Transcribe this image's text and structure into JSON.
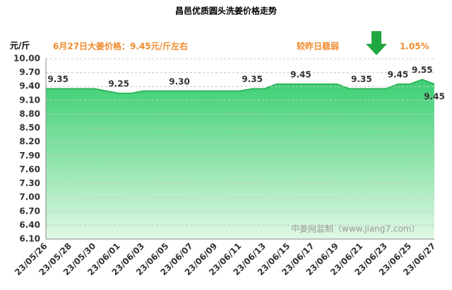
{
  "chart_data": {
    "type": "area",
    "title": "昌邑优质圆头洗姜价格走势",
    "y_label": "元/斤",
    "annotations": [
      "6月27日大姜价格：9.45元/斤左右",
      "较昨日稳弱",
      "1.05%",
      "中姜网监制（www.jiang7.com）"
    ],
    "categories": [
      "23/05/26",
      null,
      "23/05/28",
      null,
      "23/05/30",
      null,
      "23/06/01",
      null,
      "23/06/03",
      null,
      "23/06/05",
      null,
      "23/06/07",
      null,
      "23/06/09",
      null,
      "23/06/11",
      null,
      "23/06/13",
      null,
      "23/06/15",
      null,
      "23/06/17",
      null,
      "23/06/19",
      null,
      "23/06/21",
      null,
      "23/06/23",
      null,
      "23/06/25",
      null,
      "23/06/27"
    ],
    "values": [
      9.35,
      9.35,
      9.35,
      9.35,
      9.35,
      9.3,
      9.25,
      9.25,
      9.3,
      9.3,
      9.3,
      9.3,
      9.3,
      9.3,
      9.3,
      9.3,
      9.3,
      9.35,
      9.35,
      9.45,
      9.45,
      9.45,
      9.45,
      9.45,
      9.45,
      9.35,
      9.35,
      9.35,
      9.35,
      9.45,
      9.45,
      9.55,
      9.45
    ],
    "value_labels": [
      null,
      "9.35",
      null,
      null,
      null,
      null,
      "9.25",
      null,
      null,
      null,
      null,
      "9.30",
      null,
      null,
      null,
      null,
      null,
      "9.35",
      null,
      null,
      null,
      "9.45",
      null,
      null,
      null,
      null,
      "9.35",
      null,
      null,
      "9.45",
      null,
      "9.55",
      "9.45"
    ],
    "color": "#2fb85c",
    "ylim": [
      6.1,
      10.0
    ],
    "yticks": [
      {
        "value": 6.1,
        "label": "6.10"
      },
      {
        "value": 6.4,
        "label": "6.40"
      },
      {
        "value": 6.7,
        "label": "6.70"
      },
      {
        "value": 7.0,
        "label": "7.00"
      },
      {
        "value": 7.3,
        "label": "7.30"
      },
      {
        "value": 7.6,
        "label": "7.60"
      },
      {
        "value": 7.9,
        "label": "7.90"
      },
      {
        "value": 8.2,
        "label": "8.20"
      },
      {
        "value": 8.5,
        "label": "8.50"
      },
      {
        "value": 8.8,
        "label": "8.80"
      },
      {
        "value": 9.1,
        "label": "9.10"
      },
      {
        "value": 9.4,
        "label": "9.40"
      },
      {
        "value": 9.7,
        "label": "9.70"
      },
      {
        "value": 10.0,
        "label": "10.00"
      }
    ],
    "grid": true
  }
}
